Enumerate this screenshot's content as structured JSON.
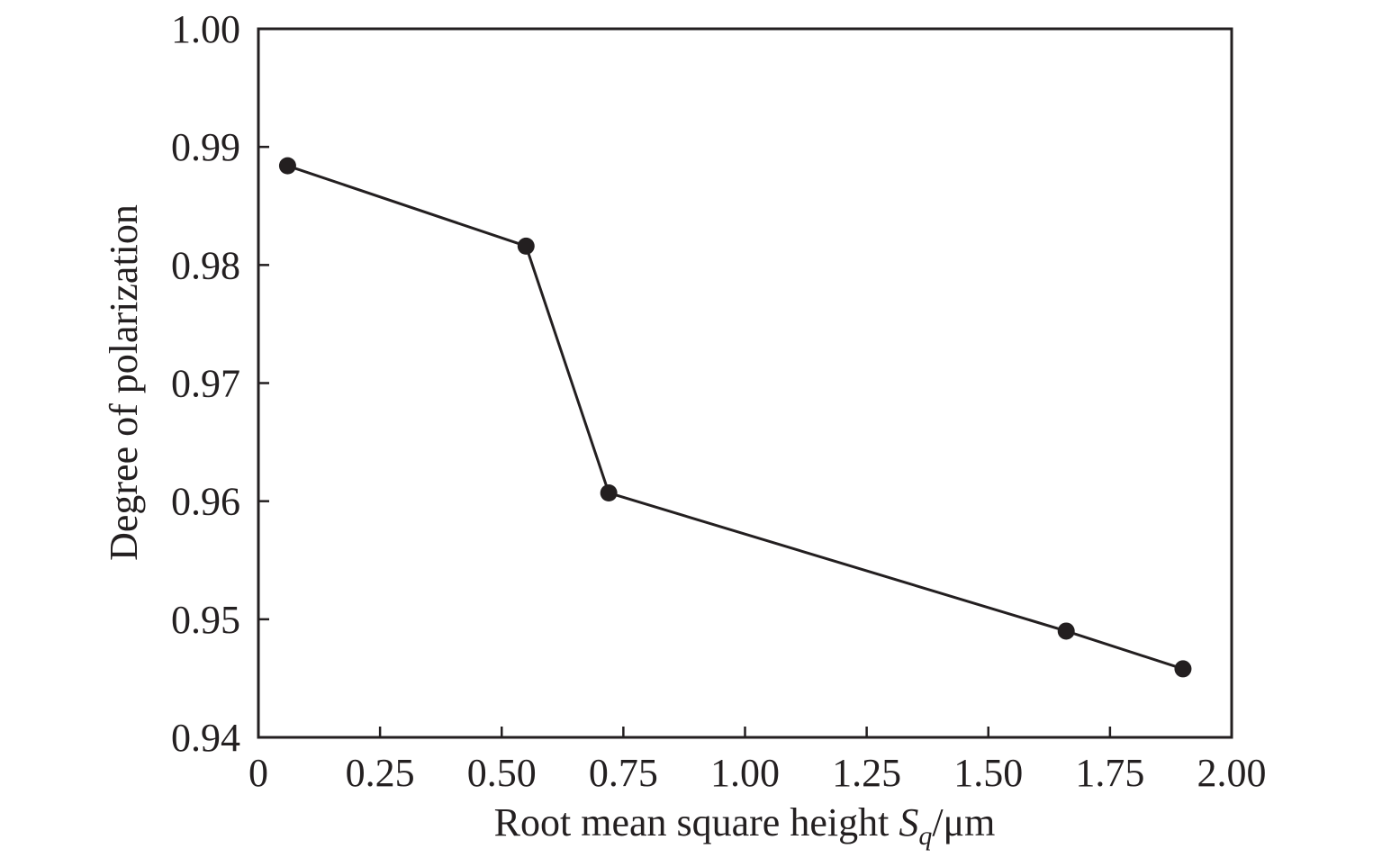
{
  "chart_data": {
    "type": "line",
    "title": "",
    "xlabel_parts": {
      "prefix": "Root mean square height ",
      "symbol": "S",
      "subscript": "q",
      "suffix": "/μm"
    },
    "ylabel": "Degree of polarization",
    "xlim": [
      0,
      2.0
    ],
    "ylim": [
      0.94,
      1.0
    ],
    "x_ticks": [
      0,
      0.25,
      0.5,
      0.75,
      1.0,
      1.25,
      1.5,
      1.75,
      2.0
    ],
    "x_tick_labels": [
      "0",
      "0.25",
      "0.50",
      "0.75",
      "1.00",
      "1.25",
      "1.50",
      "1.75",
      "2.00"
    ],
    "y_ticks": [
      0.94,
      0.95,
      0.96,
      0.97,
      0.98,
      0.99,
      1.0
    ],
    "y_tick_labels": [
      "0.94",
      "0.95",
      "0.96",
      "0.97",
      "0.98",
      "0.99",
      "1.00"
    ],
    "grid": false,
    "colors": {
      "line": "#231f20",
      "marker": "#231f20",
      "axis": "#231f20"
    },
    "series": [
      {
        "x": [
          0.06,
          0.55,
          0.72,
          1.66,
          1.9
        ],
        "y": [
          0.9884,
          0.9816,
          0.9607,
          0.949,
          0.9458
        ]
      }
    ]
  }
}
